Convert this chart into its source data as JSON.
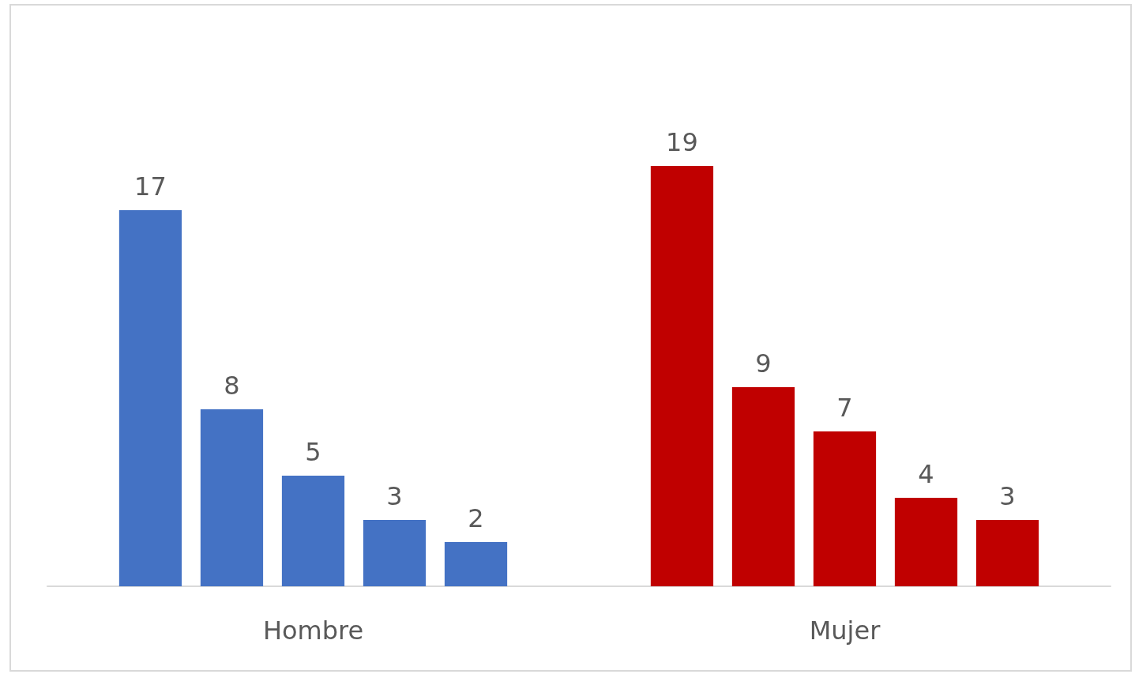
{
  "chart_data": {
    "type": "bar",
    "categories": [
      "Hombre",
      "Mujer"
    ],
    "series": [
      {
        "colors": [
          "#4472c4",
          "#c00000"
        ],
        "values": [
          17,
          19
        ]
      },
      {
        "colors": [
          "#4472c4",
          "#c00000"
        ],
        "values": [
          8,
          9
        ]
      },
      {
        "colors": [
          "#4472c4",
          "#c00000"
        ],
        "values": [
          5,
          7
        ]
      },
      {
        "colors": [
          "#4472c4",
          "#c00000"
        ],
        "values": [
          3,
          4
        ]
      },
      {
        "colors": [
          "#4472c4",
          "#c00000"
        ],
        "values": [
          2,
          3
        ]
      }
    ],
    "data_labels": true
  }
}
